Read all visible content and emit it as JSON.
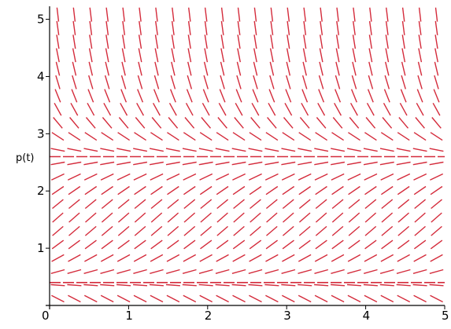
{
  "chart_data": {
    "type": "direction-field",
    "title": "",
    "xlabel": "",
    "ylabel": "p(t)",
    "xlim": [
      0,
      5
    ],
    "ylim": [
      0,
      5.2
    ],
    "x_tick_labels": [
      "0",
      "1",
      "2",
      "3",
      "4",
      "5"
    ],
    "y_tick_labels": [
      "0",
      "1",
      "2",
      "3",
      "4",
      "5"
    ],
    "x_ticks": [
      0,
      1,
      2,
      3,
      4,
      5
    ],
    "y_ticks": [
      0,
      1,
      2,
      3,
      4,
      5
    ],
    "equilibria": [
      0.4,
      2.6
    ],
    "grid_rows": 22,
    "grid_cols": 24,
    "field": "dp/dt = (p - 0.4)(2.6 - p)",
    "colors": {
      "field": "#d42b3b",
      "axes": "#000000",
      "background": "#ffffff"
    }
  }
}
